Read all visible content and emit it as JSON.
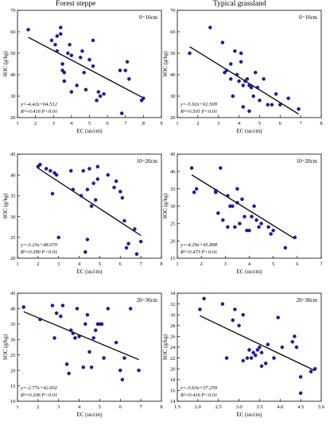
{
  "figure": {
    "column_titles": [
      "Forest steppe",
      "Typical grassland"
    ]
  },
  "chart_data": [
    {
      "type": "scatter",
      "column": "Forest steppe",
      "depth_label": "0~10cm",
      "xlabel": "EC (us/cm)",
      "ylabel": "SOC (g/kg)",
      "xlim": [
        1,
        9
      ],
      "ylim": [
        20,
        70
      ],
      "xticks": [
        "1",
        "2",
        "3",
        "4",
        "5",
        "6",
        "7",
        "8",
        "9"
      ],
      "yticks": [
        "20",
        "30",
        "40",
        "50",
        "60",
        "70"
      ],
      "equation": "y=-4.42x+64.512",
      "r2_label": "R²=0.416 P<0.01",
      "fit": {
        "slope": -4.42,
        "intercept": 64.512
      },
      "points": [
        [
          1.6,
          61
        ],
        [
          2.9,
          56
        ],
        [
          3.1,
          54
        ],
        [
          3.2,
          51
        ],
        [
          3.2,
          58
        ],
        [
          3.4,
          62
        ],
        [
          3.4,
          59
        ],
        [
          3.5,
          45
        ],
        [
          3.5,
          42
        ],
        [
          3.6,
          41
        ],
        [
          3.6,
          37
        ],
        [
          3.8,
          50
        ],
        [
          3.9,
          54
        ],
        [
          4.0,
          49
        ],
        [
          4.0,
          32
        ],
        [
          4.3,
          35
        ],
        [
          4.5,
          48
        ],
        [
          4.6,
          51
        ],
        [
          4.7,
          41
        ],
        [
          4.8,
          33
        ],
        [
          5.0,
          47
        ],
        [
          5.2,
          44
        ],
        [
          5.2,
          56
        ],
        [
          5.4,
          28
        ],
        [
          5.5,
          32
        ],
        [
          5.6,
          30
        ],
        [
          5.8,
          31
        ],
        [
          6.7,
          42
        ],
        [
          6.8,
          22
        ],
        [
          7.0,
          42
        ],
        [
          7.1,
          46
        ],
        [
          7.2,
          38
        ],
        [
          7.9,
          28
        ],
        [
          8.0,
          29
        ]
      ]
    },
    {
      "type": "scatter",
      "column": "Typical grassland",
      "depth_label": "0~10cm",
      "xlabel": "EC (us/cm)",
      "ylabel": "SOC (g/kg)",
      "xlim": [
        1,
        8
      ],
      "ylim": [
        20,
        70
      ],
      "xticks": [
        "1",
        "2",
        "3",
        "4",
        "5",
        "6",
        "7",
        "8"
      ],
      "yticks": [
        "20",
        "30",
        "40",
        "50",
        "60",
        "70"
      ],
      "equation": "y=-5.92x+62.509",
      "r2_label": "R²=0.501 P<0.01",
      "fit": {
        "slope": -5.92,
        "intercept": 62.509
      },
      "points": [
        [
          1.6,
          50
        ],
        [
          2.6,
          62
        ],
        [
          3.2,
          55
        ],
        [
          3.3,
          41
        ],
        [
          3.4,
          42
        ],
        [
          3.6,
          45
        ],
        [
          3.6,
          38
        ],
        [
          3.7,
          30
        ],
        [
          3.8,
          51
        ],
        [
          3.9,
          40
        ],
        [
          4.0,
          37
        ],
        [
          4.1,
          50
        ],
        [
          4.1,
          46
        ],
        [
          4.2,
          35
        ],
        [
          4.2,
          25
        ],
        [
          4.3,
          37
        ],
        [
          4.4,
          38
        ],
        [
          4.5,
          23
        ],
        [
          4.5,
          35
        ],
        [
          4.6,
          34
        ],
        [
          4.7,
          30
        ],
        [
          4.8,
          41
        ],
        [
          4.9,
          34
        ],
        [
          5.0,
          28
        ],
        [
          5.2,
          38
        ],
        [
          5.4,
          26
        ],
        [
          5.6,
          26
        ],
        [
          5.8,
          31
        ],
        [
          6.0,
          26
        ],
        [
          6.4,
          29
        ],
        [
          6.9,
          24
        ]
      ]
    },
    {
      "type": "scatter",
      "column": "Forest steppe",
      "depth_label": "10~20cm",
      "xlabel": "EC (us/cm)",
      "ylabel": "SOC (g/kg)",
      "xlim": [
        1,
        8
      ],
      "ylim": [
        20,
        45
      ],
      "xticks": [
        "1",
        "2",
        "3",
        "4",
        "5",
        "6",
        "7",
        "8"
      ],
      "yticks": [
        "20",
        "25",
        "30",
        "35",
        "40",
        "45"
      ],
      "equation": "y=-3.23x+48.070",
      "r2_label": "R²=0.390 P<0.01",
      "fit": {
        "slope": -3.23,
        "intercept": 48.07
      },
      "points": [
        [
          2.0,
          42
        ],
        [
          2.1,
          42.5
        ],
        [
          2.4,
          41.5
        ],
        [
          2.6,
          41
        ],
        [
          2.7,
          35.5
        ],
        [
          2.8,
          40.5
        ],
        [
          2.9,
          40
        ],
        [
          3.0,
          25
        ],
        [
          3.6,
          41
        ],
        [
          3.7,
          36.5
        ],
        [
          4.1,
          35
        ],
        [
          4.2,
          41
        ],
        [
          4.3,
          21.5
        ],
        [
          4.4,
          24.5
        ],
        [
          4.4,
          36.5
        ],
        [
          4.5,
          41.5
        ],
        [
          4.6,
          32.5
        ],
        [
          4.7,
          38
        ],
        [
          4.8,
          34
        ],
        [
          4.9,
          42
        ],
        [
          4.9,
          39
        ],
        [
          5.4,
          40
        ],
        [
          5.7,
          37
        ],
        [
          5.8,
          38.5
        ],
        [
          6.0,
          36
        ],
        [
          6.1,
          34.5
        ],
        [
          6.2,
          29
        ],
        [
          6.3,
          22.5
        ],
        [
          6.4,
          23.5
        ],
        [
          6.7,
          27
        ],
        [
          6.8,
          21
        ],
        [
          7.0,
          24
        ]
      ]
    },
    {
      "type": "scatter",
      "column": "Typical grassland",
      "depth_label": "10~20cm",
      "xlabel": "EC (us/cm)",
      "ylabel": "SOC (g/kg)",
      "xlim": [
        1,
        7
      ],
      "ylim": [
        15,
        45
      ],
      "xticks": [
        "1",
        "2",
        "3",
        "4",
        "5",
        "6",
        "7"
      ],
      "yticks": [
        "15",
        "20",
        "25",
        "30",
        "35",
        "40",
        "45"
      ],
      "equation": "y=-4.29x+45.898",
      "r2_label": "R²=0.473 P<0.01",
      "fit": {
        "slope": -4.29,
        "intercept": 45.898
      },
      "points": [
        [
          1.6,
          41
        ],
        [
          1.7,
          34
        ],
        [
          1.8,
          35
        ],
        [
          2.6,
          34
        ],
        [
          2.6,
          34.5
        ],
        [
          2.7,
          28
        ],
        [
          2.8,
          41
        ],
        [
          2.9,
          26
        ],
        [
          3.1,
          24
        ],
        [
          3.1,
          33
        ],
        [
          3.2,
          30
        ],
        [
          3.3,
          30
        ],
        [
          3.4,
          24
        ],
        [
          3.5,
          31
        ],
        [
          3.5,
          35
        ],
        [
          3.6,
          25
        ],
        [
          3.7,
          32
        ],
        [
          3.8,
          27
        ],
        [
          3.9,
          23
        ],
        [
          4.0,
          23
        ],
        [
          4.1,
          27
        ],
        [
          4.2,
          30
        ],
        [
          4.3,
          26
        ],
        [
          4.4,
          24
        ],
        [
          4.5,
          25
        ],
        [
          4.8,
          24
        ],
        [
          4.9,
          22
        ],
        [
          5.0,
          23
        ],
        [
          5.5,
          18
        ],
        [
          5.9,
          21
        ]
      ]
    },
    {
      "type": "scatter",
      "column": "Forest steppe",
      "depth_label": "20~30cm",
      "xlabel": "EC (us/cm)",
      "ylabel": "SOC (g/kg)",
      "xlim": [
        1,
        8
      ],
      "ylim": [
        10,
        45
      ],
      "xticks": [
        "1",
        "2",
        "3",
        "4",
        "5",
        "6",
        "7",
        "8"
      ],
      "yticks": [
        "10",
        "15",
        "20",
        "25",
        "30",
        "35",
        "40",
        "45"
      ],
      "equation": "y=-2.77x+42.602",
      "r2_label": "R²=0.206 P<0.01",
      "fit": {
        "slope": -2.77,
        "intercept": 42.602
      },
      "points": [
        [
          1.3,
          40.5
        ],
        [
          2.1,
          36.5
        ],
        [
          2.7,
          41
        ],
        [
          2.8,
          30.5
        ],
        [
          2.9,
          38.5
        ],
        [
          3.1,
          37.5
        ],
        [
          3.2,
          41
        ],
        [
          3.4,
          22
        ],
        [
          3.5,
          19
        ],
        [
          3.6,
          33
        ],
        [
          3.7,
          32
        ],
        [
          3.8,
          30.5
        ],
        [
          3.9,
          40
        ],
        [
          4.0,
          31
        ],
        [
          4.2,
          21
        ],
        [
          4.3,
          35
        ],
        [
          4.4,
          38
        ],
        [
          4.5,
          26
        ],
        [
          4.6,
          21
        ],
        [
          4.7,
          30.5
        ],
        [
          4.8,
          33
        ],
        [
          4.9,
          35
        ],
        [
          5.0,
          35
        ],
        [
          5.1,
          35
        ],
        [
          5.2,
          24
        ],
        [
          5.4,
          40
        ],
        [
          5.8,
          29
        ],
        [
          6.0,
          20
        ],
        [
          6.1,
          17
        ],
        [
          6.2,
          24
        ],
        [
          6.5,
          40
        ],
        [
          6.9,
          20
        ]
      ]
    },
    {
      "type": "scatter",
      "column": "Typical grassland",
      "depth_label": "20~30cm",
      "xlabel": "EC (us/cm)",
      "ylabel": "SOC (g/kg)",
      "xlim": [
        1.5,
        5.0
      ],
      "ylim": [
        14,
        34
      ],
      "xticks": [
        "1.5",
        "2.0",
        "2.5",
        "3.0",
        "3.5",
        "4.0",
        "4.5",
        "5.0"
      ],
      "yticks": [
        "14",
        "16",
        "18",
        "20",
        "22",
        "24",
        "26",
        "28",
        "30",
        "32",
        "34"
      ],
      "equation": "y=-3.63x+37.259",
      "r2_label": "R²=0.416 P<0.01",
      "fit": {
        "slope": -3.63,
        "intercept": 37.259
      },
      "points": [
        [
          2.05,
          31
        ],
        [
          2.15,
          33
        ],
        [
          2.6,
          32
        ],
        [
          2.7,
          22
        ],
        [
          2.85,
          29
        ],
        [
          2.9,
          31
        ],
        [
          3.0,
          28
        ],
        [
          3.1,
          21.5
        ],
        [
          3.1,
          30
        ],
        [
          3.2,
          22
        ],
        [
          3.25,
          23.5
        ],
        [
          3.3,
          22
        ],
        [
          3.35,
          23
        ],
        [
          3.4,
          22.5
        ],
        [
          3.45,
          23.5
        ],
        [
          3.5,
          24
        ],
        [
          3.55,
          20.5
        ],
        [
          3.55,
          23
        ],
        [
          3.65,
          21
        ],
        [
          3.7,
          24.5
        ],
        [
          3.85,
          22
        ],
        [
          3.95,
          29.5
        ],
        [
          4.05,
          24
        ],
        [
          4.3,
          25
        ],
        [
          4.35,
          26
        ],
        [
          4.4,
          24
        ],
        [
          4.5,
          15.5
        ],
        [
          4.5,
          18.5
        ],
        [
          4.75,
          19.5
        ],
        [
          4.85,
          20
        ]
      ]
    }
  ]
}
